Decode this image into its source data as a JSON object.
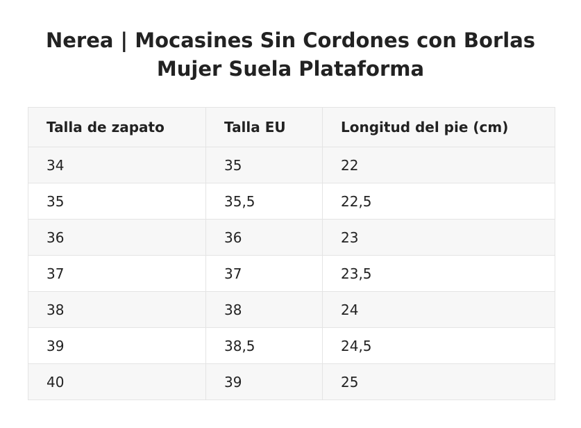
{
  "title": {
    "line1": "Nerea | Mocasines Sin Cordones con Borlas",
    "line2": "Mujer Suela Plataforma"
  },
  "table": {
    "headers": [
      "Talla de zapato",
      "Talla EU",
      "Longitud del pie (cm)"
    ],
    "rows": [
      [
        "34",
        "35",
        "22"
      ],
      [
        "35",
        "35,5",
        "22,5"
      ],
      [
        "36",
        "36",
        "23"
      ],
      [
        "37",
        "37",
        "23,5"
      ],
      [
        "38",
        "38",
        "24"
      ],
      [
        "39",
        "38,5",
        "24,5"
      ],
      [
        "40",
        "39",
        "25"
      ]
    ]
  },
  "colors": {
    "header_bg": "#f7f7f7",
    "stripe_bg": "#f7f7f7",
    "border": "#e4e4e4",
    "text": "#222222"
  }
}
